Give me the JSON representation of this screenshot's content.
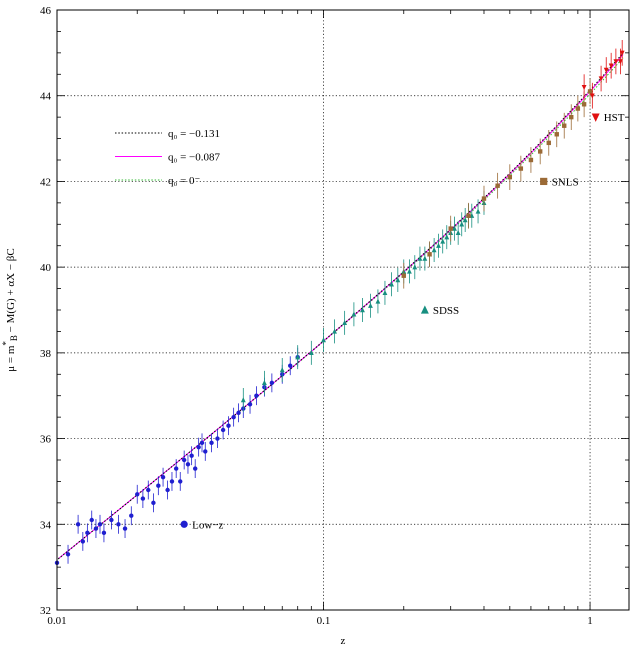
{
  "chart_data": {
    "type": "scatter",
    "xscale": "log",
    "xlim": [
      0.01,
      1.4
    ],
    "ylim": [
      32,
      46
    ],
    "x_ticks": [
      {
        "value": 0.01,
        "label": "0.01"
      },
      {
        "value": 0.1,
        "label": "0.1"
      },
      {
        "value": 1,
        "label": "1"
      }
    ],
    "y_ticks": [
      {
        "value": 32,
        "label": "32"
      },
      {
        "value": 34,
        "label": "34"
      },
      {
        "value": 36,
        "label": "36"
      },
      {
        "value": 38,
        "label": "38"
      },
      {
        "value": 40,
        "label": "40"
      },
      {
        "value": 42,
        "label": "42"
      },
      {
        "value": 44,
        "label": "44"
      },
      {
        "value": 46,
        "label": "46"
      }
    ],
    "xlabel": "z",
    "ylabel": "μ = m*B − M(G) + αX − βC",
    "grid": true,
    "lines": [
      {
        "name": "q₀ = −0.131",
        "color": "#000000",
        "style": "dotted",
        "q0": -0.131
      },
      {
        "name": "q₀ = −0.087",
        "color": "#ff00ff",
        "style": "solid",
        "q0": -0.087
      },
      {
        "name": "q₀ = 0⁻",
        "color": "#33bb33",
        "style": "dotted",
        "q0": 0
      }
    ],
    "series": [
      {
        "name": "Low−z",
        "color": "#1f1fd0",
        "marker": "circle",
        "points": [
          [
            0.01,
            33.1
          ],
          [
            0.011,
            33.3
          ],
          [
            0.012,
            34.0
          ],
          [
            0.0125,
            33.6
          ],
          [
            0.013,
            33.8
          ],
          [
            0.0135,
            34.1
          ],
          [
            0.014,
            33.9
          ],
          [
            0.0145,
            34.0
          ],
          [
            0.015,
            33.8
          ],
          [
            0.016,
            34.1
          ],
          [
            0.017,
            34.0
          ],
          [
            0.018,
            33.9
          ],
          [
            0.019,
            34.2
          ],
          [
            0.02,
            34.7
          ],
          [
            0.021,
            34.6
          ],
          [
            0.022,
            34.8
          ],
          [
            0.023,
            34.5
          ],
          [
            0.024,
            34.9
          ],
          [
            0.025,
            35.1
          ],
          [
            0.026,
            34.8
          ],
          [
            0.027,
            35.0
          ],
          [
            0.028,
            35.3
          ],
          [
            0.029,
            35.0
          ],
          [
            0.03,
            35.5
          ],
          [
            0.031,
            35.4
          ],
          [
            0.032,
            35.6
          ],
          [
            0.033,
            35.3
          ],
          [
            0.034,
            35.8
          ],
          [
            0.035,
            35.9
          ],
          [
            0.036,
            35.7
          ],
          [
            0.038,
            35.9
          ],
          [
            0.04,
            36.0
          ],
          [
            0.042,
            36.2
          ],
          [
            0.044,
            36.3
          ],
          [
            0.046,
            36.5
          ],
          [
            0.048,
            36.6
          ],
          [
            0.05,
            36.7
          ],
          [
            0.053,
            36.8
          ],
          [
            0.056,
            37.0
          ],
          [
            0.06,
            37.2
          ],
          [
            0.064,
            37.3
          ],
          [
            0.07,
            37.5
          ],
          [
            0.075,
            37.7
          ],
          [
            0.08,
            37.9
          ]
        ]
      },
      {
        "name": "SDSS",
        "color": "#178f80",
        "marker": "triangle",
        "points": [
          [
            0.05,
            36.9
          ],
          [
            0.06,
            37.3
          ],
          [
            0.07,
            37.6
          ],
          [
            0.08,
            37.9
          ],
          [
            0.09,
            38.0
          ],
          [
            0.1,
            38.3
          ],
          [
            0.11,
            38.5
          ],
          [
            0.12,
            38.7
          ],
          [
            0.13,
            38.9
          ],
          [
            0.14,
            39.0
          ],
          [
            0.15,
            39.1
          ],
          [
            0.16,
            39.2
          ],
          [
            0.17,
            39.4
          ],
          [
            0.18,
            39.6
          ],
          [
            0.19,
            39.7
          ],
          [
            0.2,
            39.9
          ],
          [
            0.21,
            39.9
          ],
          [
            0.22,
            40.0
          ],
          [
            0.23,
            40.2
          ],
          [
            0.24,
            40.2
          ],
          [
            0.25,
            40.3
          ],
          [
            0.26,
            40.4
          ],
          [
            0.27,
            40.5
          ],
          [
            0.28,
            40.6
          ],
          [
            0.29,
            40.7
          ],
          [
            0.3,
            40.8
          ],
          [
            0.31,
            40.9
          ],
          [
            0.32,
            40.8
          ],
          [
            0.33,
            41.0
          ],
          [
            0.34,
            41.1
          ],
          [
            0.35,
            41.2
          ],
          [
            0.36,
            41.2
          ],
          [
            0.38,
            41.3
          ],
          [
            0.4,
            41.5
          ]
        ]
      },
      {
        "name": "SNLS",
        "color": "#9b6a36",
        "marker": "square",
        "points": [
          [
            0.2,
            39.8
          ],
          [
            0.25,
            40.3
          ],
          [
            0.3,
            40.9
          ],
          [
            0.35,
            41.2
          ],
          [
            0.4,
            41.6
          ],
          [
            0.45,
            41.9
          ],
          [
            0.5,
            42.1
          ],
          [
            0.55,
            42.3
          ],
          [
            0.6,
            42.5
          ],
          [
            0.65,
            42.7
          ],
          [
            0.7,
            42.9
          ],
          [
            0.75,
            43.1
          ],
          [
            0.8,
            43.3
          ],
          [
            0.85,
            43.5
          ],
          [
            0.9,
            43.7
          ],
          [
            0.95,
            43.8
          ],
          [
            1.0,
            44.1
          ]
        ]
      },
      {
        "name": "HST",
        "color": "#e01010",
        "marker": "triangle-down",
        "points": [
          [
            0.95,
            44.2
          ],
          [
            1.02,
            44.0
          ],
          [
            1.1,
            44.4
          ],
          [
            1.15,
            44.6
          ],
          [
            1.2,
            44.7
          ],
          [
            1.25,
            44.8
          ],
          [
            1.3,
            44.8
          ],
          [
            1.32,
            45.0
          ]
        ]
      }
    ],
    "legend_placement": "top-left",
    "annotations": [
      {
        "text": "Low−z",
        "x": 0.03,
        "y": 34.0
      },
      {
        "text": "SDSS",
        "x": 0.24,
        "y": 39.0
      },
      {
        "text": "SNLS",
        "x": 0.67,
        "y": 42.0
      },
      {
        "text": "HST",
        "x": 1.05,
        "y": 43.5
      }
    ]
  }
}
